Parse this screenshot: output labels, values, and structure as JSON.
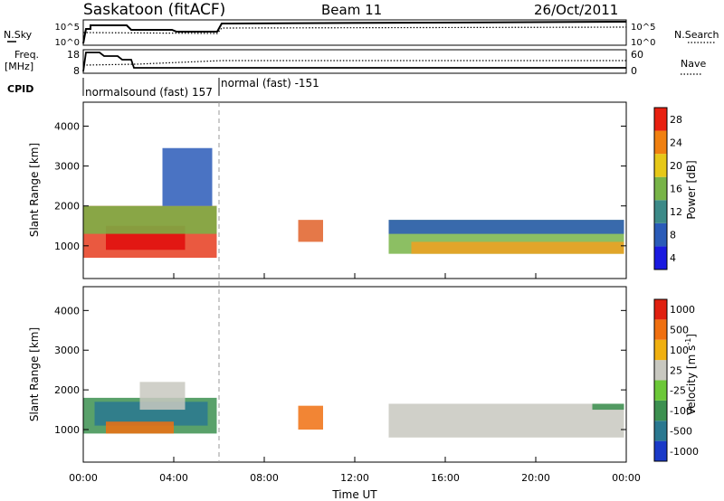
{
  "header": {
    "station": "Saskatoon (fitACF)",
    "beam": "Beam 11",
    "date": "26/Oct/2011"
  },
  "status_panels": {
    "nsky_label": "N.Sky",
    "nsky_ticks": [
      "10^5",
      "10^0"
    ],
    "nsearch_label": "N.Search",
    "nsearch_ticks": [
      "10^5",
      "10^0"
    ],
    "freq_label": "Freq.",
    "freq_unit": "[MHz]",
    "freq_ticks": [
      18,
      8
    ],
    "nave_label": "Nave",
    "nave_ticks": [
      60,
      0
    ],
    "cpid_label": "CPID",
    "cpid_segments": [
      {
        "label": "normalsound (fast) 157",
        "start_hour": 0,
        "end_hour": 6
      },
      {
        "label": "normal (fast) -151",
        "start_hour": 6,
        "end_hour": 24
      }
    ]
  },
  "colorbars": {
    "power": {
      "label": "Power [dB]",
      "ticks": [
        "4",
        "8",
        "12",
        "16",
        "20",
        "24",
        "28"
      ],
      "colors": [
        "#1a1ae0",
        "#2a5bb8",
        "#3c8a88",
        "#78b448",
        "#e6c818",
        "#f08010",
        "#e82010"
      ]
    },
    "velocity": {
      "label": "Velocity [m s^-1]",
      "label_main": "Velocity [m s",
      "label_sup": "-1",
      "label_end": "]",
      "ticks": [
        "1000",
        "500",
        "100",
        "25",
        "-25",
        "-100",
        "-500",
        "-1000"
      ],
      "colors": [
        "#1a3ac8",
        "#2a7890",
        "#3c9050",
        "#6cc838",
        "#c8c8c0",
        "#f0b010",
        "#f07010",
        "#e02010"
      ]
    }
  },
  "chart_data": [
    {
      "type": "heatmap",
      "title": "",
      "panel": "power",
      "ylabel": "Slant Range [km]",
      "yticks": [
        1000,
        2000,
        3000,
        4000
      ],
      "ylim": [
        180,
        4600
      ],
      "x_hours": [
        0,
        24
      ],
      "regions": [
        {
          "t0": 0.0,
          "t1": 5.9,
          "r0": 700,
          "r1": 2000,
          "color": "#e63c1e"
        },
        {
          "t0": 1.0,
          "t1": 4.5,
          "r0": 900,
          "r1": 1500,
          "color": "#e00c0c"
        },
        {
          "t0": 0.0,
          "t1": 5.9,
          "r0": 1300,
          "r1": 2000,
          "color": "#78b448"
        },
        {
          "t0": 3.5,
          "t1": 5.7,
          "r0": 2000,
          "r1": 3450,
          "color": "#2a5bb8"
        },
        {
          "t0": 9.5,
          "t1": 10.6,
          "r0": 1100,
          "r1": 1650,
          "color": "#e06028"
        },
        {
          "t0": 13.5,
          "t1": 23.9,
          "r0": 800,
          "r1": 1650,
          "color": "#78b448"
        },
        {
          "t0": 14.5,
          "t1": 23.9,
          "r0": 800,
          "r1": 1100,
          "color": "#f0a020"
        },
        {
          "t0": 13.5,
          "t1": 23.9,
          "r0": 1300,
          "r1": 1650,
          "color": "#2a5bb8"
        }
      ]
    },
    {
      "type": "heatmap",
      "title": "",
      "panel": "velocity",
      "ylabel": "Slant Range [km]",
      "yticks": [
        1000,
        2000,
        3000,
        4000
      ],
      "ylim": [
        180,
        4600
      ],
      "x_hours": [
        0,
        24
      ],
      "xticks": [
        "00:00",
        "04:00",
        "08:00",
        "12:00",
        "16:00",
        "20:00",
        "00:00"
      ],
      "xlabel": "Time UT",
      "regions": [
        {
          "t0": 0.0,
          "t1": 5.9,
          "r0": 900,
          "r1": 1800,
          "color": "#3c9050"
        },
        {
          "t0": 0.5,
          "t1": 5.5,
          "r0": 1100,
          "r1": 1700,
          "color": "#2a7890"
        },
        {
          "t0": 2.5,
          "t1": 4.5,
          "r0": 1500,
          "r1": 2200,
          "color": "#c8c8c0"
        },
        {
          "t0": 1.0,
          "t1": 4.0,
          "r0": 900,
          "r1": 1200,
          "color": "#f07010"
        },
        {
          "t0": 9.5,
          "t1": 10.6,
          "r0": 1000,
          "r1": 1600,
          "color": "#f07010"
        },
        {
          "t0": 13.5,
          "t1": 23.9,
          "r0": 800,
          "r1": 1650,
          "color": "#c8c8c0"
        },
        {
          "t0": 22.5,
          "t1": 23.9,
          "r0": 1500,
          "r1": 1650,
          "color": "#3c9050"
        }
      ]
    }
  ]
}
